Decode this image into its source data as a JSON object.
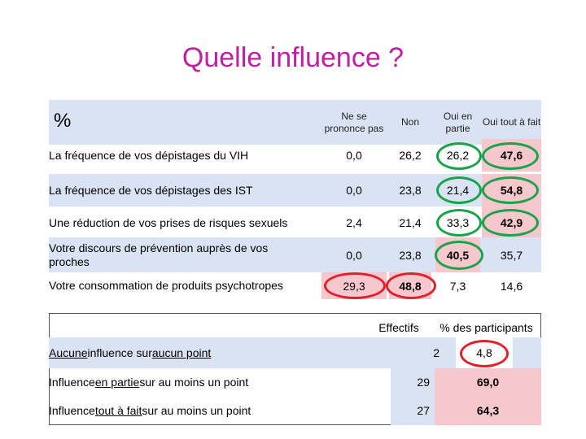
{
  "title": "Quelle influence ?",
  "table1": {
    "corner": "%",
    "headers": [
      "Ne se prononce pas",
      "Non",
      "Oui en partie",
      "Oui tout à fait"
    ],
    "rows": [
      {
        "label": "La fréquence de vos dépistages du VIH",
        "values": [
          "0,0",
          "26,2",
          "26,2",
          "47,6"
        ]
      },
      {
        "label": "La fréquence de vos dépistages des IST",
        "values": [
          "0,0",
          "23,8",
          "21,4",
          "54,8"
        ]
      },
      {
        "label": "Une réduction de vos prises de risques sexuels",
        "values": [
          "2,4",
          "21,4",
          "33,3",
          "42,9"
        ]
      },
      {
        "label": "Votre discours de prévention auprès de vos proches",
        "values": [
          "0,0",
          "23,8",
          "40,5",
          "35,7"
        ]
      },
      {
        "label": "Votre consommation de produits psychotropes",
        "values": [
          "29,3",
          "48,8",
          "7,3",
          "14,6"
        ]
      }
    ]
  },
  "table2": {
    "headers": [
      "Effectifs",
      "% des participants"
    ],
    "rows": [
      {
        "label_parts": [
          "Aucune",
          " influence sur ",
          "aucun point",
          ""
        ],
        "values": [
          "2",
          "4,8"
        ]
      },
      {
        "label_parts": [
          "Influence ",
          "en partie ",
          "sur au moins un point",
          ""
        ],
        "values": [
          "29",
          "69,0"
        ]
      },
      {
        "label_parts": [
          "Influence ",
          "tout à fait ",
          "sur au moins un point",
          ""
        ],
        "values": [
          "27",
          "64,3"
        ]
      }
    ]
  },
  "colors": {
    "title": "#c020a0",
    "band": "#dae3f3",
    "highlight": "#f7c7ce",
    "green_ring": "#17a34a",
    "red_ring": "#e0202a"
  }
}
